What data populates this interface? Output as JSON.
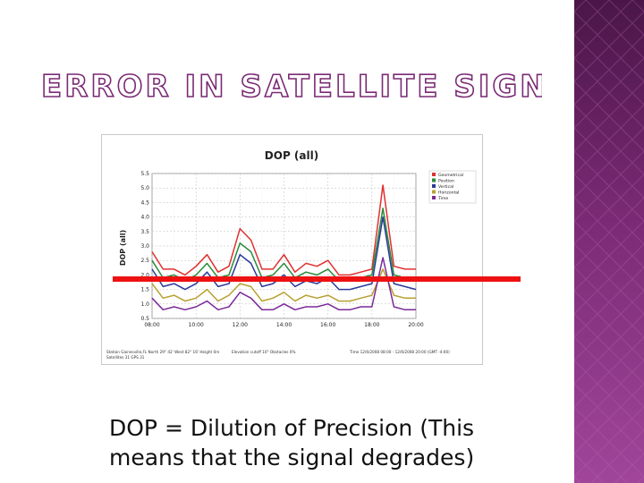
{
  "slide": {
    "title": "ERROR IN SATELLITE SIGNALS",
    "caption_line1": "DOP = Dilution of Precision  (This",
    "caption_line2": "means that the signal degrades)",
    "accent_color": "#ee1111",
    "title_color": "#7a2a74"
  },
  "chart_data": {
    "type": "line",
    "title": "DOP (all)",
    "ylabel": "DOP (all)",
    "xlabel": "",
    "ylim": [
      0.5,
      5.5
    ],
    "yticks": [
      "0.5",
      "1.0",
      "1.5",
      "2.0",
      "2.5",
      "3.0",
      "3.5",
      "4.0",
      "4.5",
      "5.0",
      "5.5"
    ],
    "xticks": [
      "08:00",
      "10:00",
      "12:00",
      "14:00",
      "16:00",
      "18:00",
      "20:00"
    ],
    "xlim": [
      8,
      20
    ],
    "grid": true,
    "legend": "top-right",
    "x": [
      8.0,
      8.5,
      9.0,
      9.5,
      10.0,
      10.5,
      11.0,
      11.5,
      12.0,
      12.5,
      13.0,
      13.5,
      14.0,
      14.5,
      15.0,
      15.5,
      16.0,
      16.5,
      17.0,
      17.5,
      18.0,
      18.5,
      19.0,
      19.5,
      20.0
    ],
    "series": [
      {
        "name": "Geometrical",
        "color": "#e03030",
        "values": [
          2.8,
          2.2,
          2.2,
          2.0,
          2.3,
          2.7,
          2.1,
          2.3,
          3.6,
          3.2,
          2.2,
          2.2,
          2.7,
          2.1,
          2.4,
          2.3,
          2.5,
          2.0,
          2.0,
          2.1,
          2.2,
          5.1,
          2.3,
          2.2,
          2.2
        ]
      },
      {
        "name": "Position",
        "color": "#2a8a3a",
        "values": [
          2.5,
          1.9,
          2.0,
          1.8,
          2.0,
          2.4,
          1.9,
          2.0,
          3.1,
          2.8,
          1.9,
          2.0,
          2.4,
          1.9,
          2.1,
          2.0,
          2.2,
          1.8,
          1.8,
          1.9,
          2.0,
          4.3,
          2.0,
          1.9,
          1.9
        ]
      },
      {
        "name": "Vertical",
        "color": "#2a3a9a",
        "values": [
          2.2,
          1.6,
          1.7,
          1.5,
          1.7,
          2.1,
          1.6,
          1.7,
          2.7,
          2.4,
          1.6,
          1.7,
          2.0,
          1.6,
          1.8,
          1.7,
          1.9,
          1.5,
          1.5,
          1.6,
          1.7,
          4.0,
          1.7,
          1.6,
          1.5
        ]
      },
      {
        "name": "Horizontal",
        "color": "#b8a030",
        "values": [
          1.7,
          1.2,
          1.3,
          1.1,
          1.2,
          1.5,
          1.1,
          1.3,
          1.7,
          1.6,
          1.1,
          1.2,
          1.4,
          1.1,
          1.3,
          1.2,
          1.3,
          1.1,
          1.1,
          1.2,
          1.3,
          2.2,
          1.3,
          1.2,
          1.2
        ]
      },
      {
        "name": "Time",
        "color": "#7a2a9a",
        "values": [
          1.2,
          0.8,
          0.9,
          0.8,
          0.9,
          1.1,
          0.8,
          0.9,
          1.4,
          1.2,
          0.8,
          0.8,
          1.0,
          0.8,
          0.9,
          0.9,
          1.0,
          0.8,
          0.8,
          0.9,
          0.9,
          2.6,
          0.9,
          0.8,
          0.8
        ]
      }
    ],
    "footer_left": "Station Gainesville,FL  North 29° 42'  West 82° 16'  Height 0m",
    "footer_left2": "Satellites 31  GPS 31",
    "footer_mid": "Elevation cutoff 10°  Obstacles 0%",
    "footer_right": "Time 12/6/2008 08:00 - 12/6/2008 20:00 (GMT -4:00)"
  }
}
